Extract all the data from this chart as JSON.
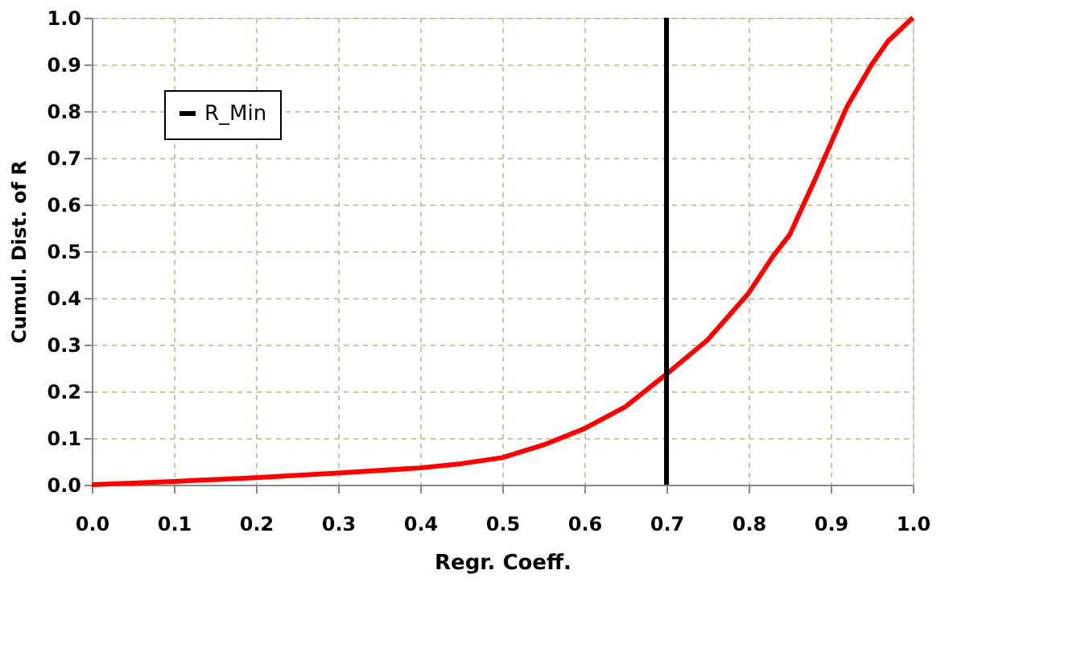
{
  "chart_data": {
    "type": "line",
    "xlabel": "Regr. Coeff.",
    "ylabel": "Cumul. Dist. of R",
    "xlim": [
      0,
      1
    ],
    "ylim": [
      0,
      1
    ],
    "xticks": [
      {
        "value": 0,
        "label": "0.0"
      },
      0.1,
      0.2,
      0.3,
      0.4,
      0.5,
      0.6,
      0.7,
      0.8,
      0.9,
      {
        "value": 1,
        "label": "1.0"
      }
    ],
    "yticks": [
      {
        "value": 0,
        "label": "0.0"
      },
      0.1,
      0.2,
      0.3,
      0.4,
      0.5,
      0.6,
      0.7,
      0.8,
      0.9,
      {
        "value": 1,
        "label": "1.0"
      }
    ],
    "series": [
      {
        "color": "#ff0000",
        "x": [
          0,
          0.1,
          0.2,
          0.3,
          0.4,
          0.45,
          0.5,
          0.55,
          0.6,
          0.65,
          0.7,
          0.75,
          0.8,
          0.83,
          0.85,
          0.88,
          0.9,
          0.92,
          0.95,
          0.97,
          1.0
        ],
        "values": [
          0,
          0.007,
          0.015,
          0.025,
          0.036,
          0.045,
          0.058,
          0.085,
          0.12,
          0.167,
          0.237,
          0.31,
          0.41,
          0.49,
          0.535,
          0.65,
          0.73,
          0.81,
          0.9,
          0.95,
          1.0
        ]
      },
      {
        "name": "R_Min",
        "color": "#000000",
        "x": [
          0.7,
          0.7
        ],
        "values": [
          0,
          1
        ]
      }
    ],
    "grid": true,
    "legend": "top left",
    "line_style": "solid",
    "marker": "none"
  }
}
